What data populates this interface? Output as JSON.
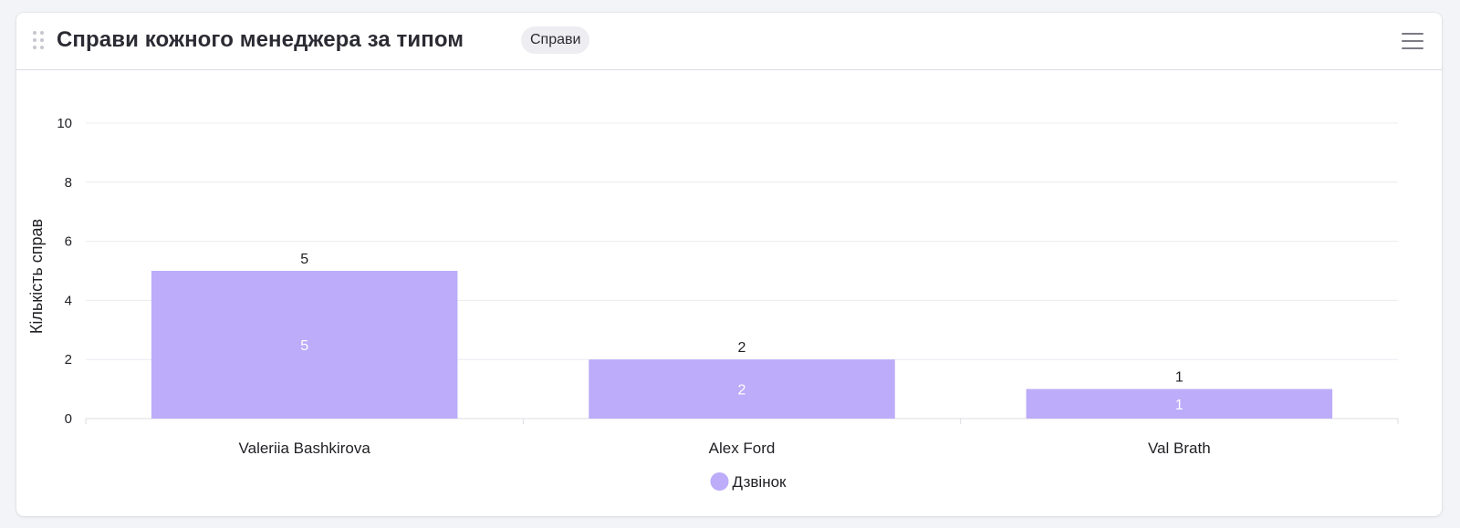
{
  "widget": {
    "title": "Справи кожного менеджера за типом",
    "badge": "Справи",
    "menu_icon": "hamburger-menu-icon",
    "drag_icon": "drag-handle-icon"
  },
  "chart_data": {
    "type": "bar",
    "title": "",
    "xlabel": "",
    "ylabel": "Кількість справ",
    "categories": [
      "Valeriia Bashkirova",
      "Alex Ford",
      "Val Brath"
    ],
    "series": [
      {
        "name": "Дзвінок",
        "values": [
          5,
          2,
          1
        ],
        "color": "#bcacf9"
      }
    ],
    "totals": [
      5,
      2,
      1
    ],
    "ylim": [
      0,
      10
    ],
    "yticks": [
      0,
      2,
      4,
      6,
      8,
      10
    ],
    "grid": true,
    "legend_position": "bottom-center",
    "data_labels": true,
    "total_labels": true
  }
}
